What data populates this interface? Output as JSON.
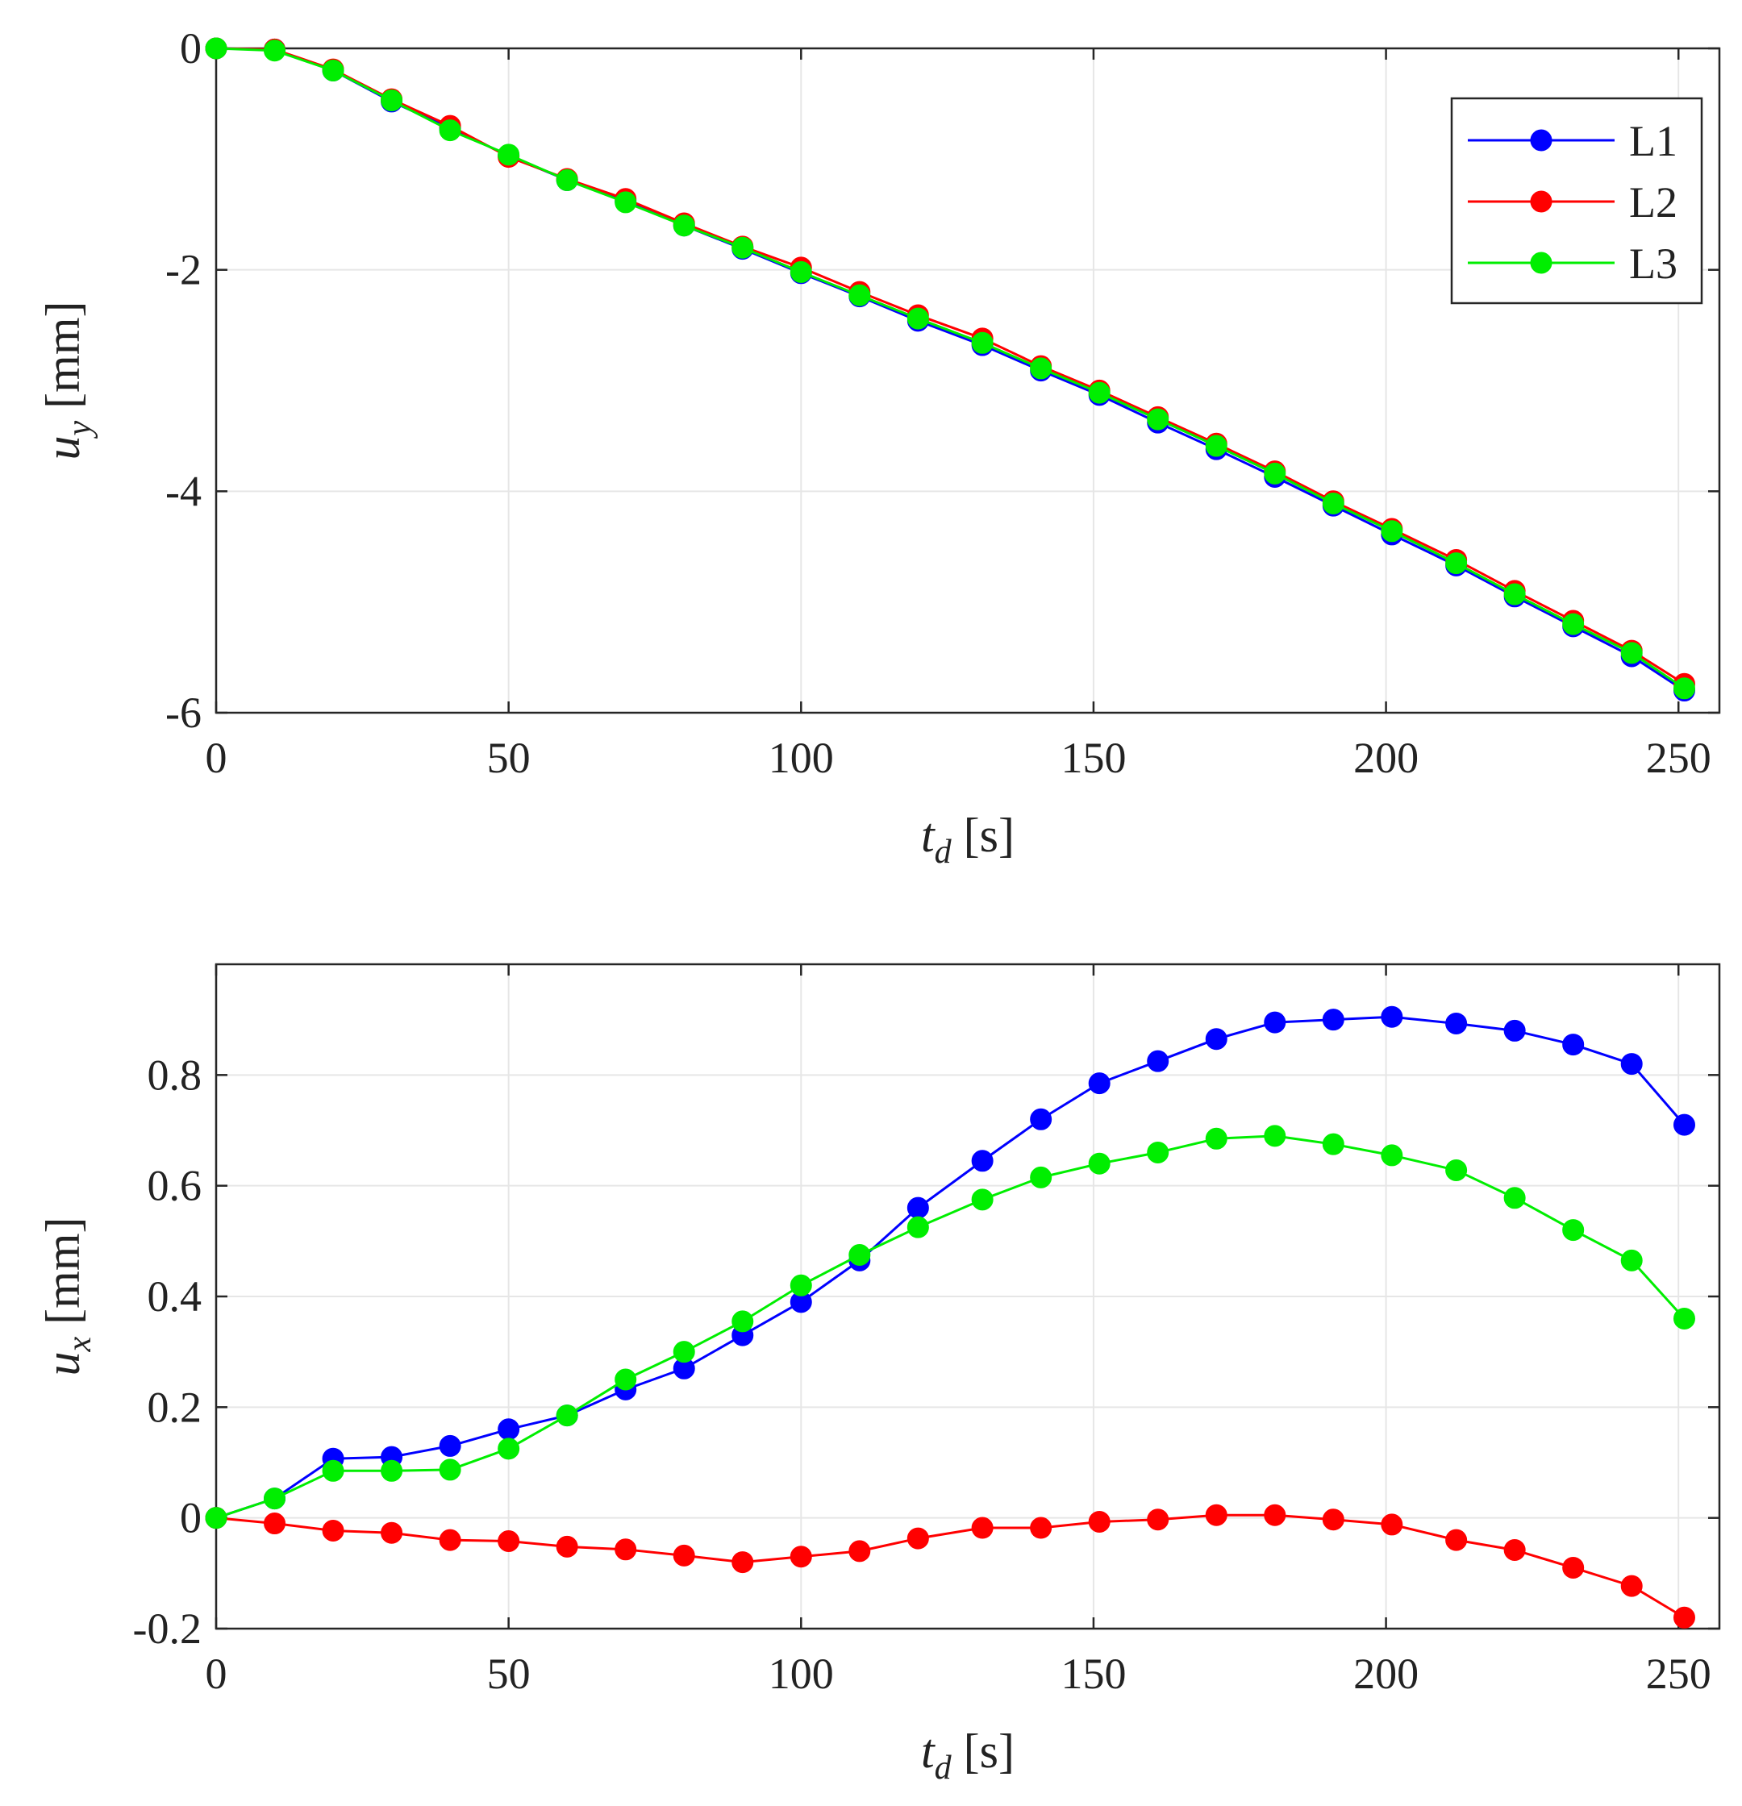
{
  "chart_data": [
    {
      "type": "line",
      "title": "",
      "xlabel": {
        "var": "t",
        "sub": "d",
        "unit": "[s]"
      },
      "ylabel": {
        "var": "u",
        "sub": "y",
        "unit": "[mm]"
      },
      "xlim": [
        0,
        257
      ],
      "ylim": [
        -6,
        0
      ],
      "xticks": [
        0,
        50,
        100,
        150,
        200,
        250
      ],
      "xtick_labels": [
        "0",
        "50",
        "100",
        "150",
        "200",
        "250"
      ],
      "yticks": [
        0,
        -2,
        -4,
        -6
      ],
      "ytick_labels": [
        "0",
        "-2",
        "-4",
        "-6"
      ],
      "grid": true,
      "legend": "top-right",
      "x": [
        0,
        10,
        20,
        30,
        40,
        50,
        60,
        70,
        80,
        90,
        100,
        110,
        120,
        131,
        141,
        151,
        161,
        171,
        181,
        191,
        201,
        212,
        222,
        232,
        242,
        251
      ],
      "series": [
        {
          "name": "L1",
          "color": "#0000ff",
          "values": [
            0,
            -0.01,
            -0.2,
            -0.48,
            -0.72,
            -0.97,
            -1.19,
            -1.38,
            -1.6,
            -1.81,
            -2.03,
            -2.24,
            -2.46,
            -2.68,
            -2.91,
            -3.13,
            -3.38,
            -3.62,
            -3.87,
            -4.13,
            -4.39,
            -4.67,
            -4.95,
            -5.22,
            -5.49,
            -5.8
          ]
        },
        {
          "name": "L2",
          "color": "#ff0000",
          "values": [
            0,
            -0.01,
            -0.19,
            -0.46,
            -0.7,
            -0.98,
            -1.18,
            -1.36,
            -1.58,
            -1.79,
            -1.98,
            -2.2,
            -2.41,
            -2.62,
            -2.87,
            -3.09,
            -3.33,
            -3.57,
            -3.82,
            -4.09,
            -4.34,
            -4.62,
            -4.9,
            -5.17,
            -5.44,
            -5.74
          ]
        },
        {
          "name": "L3",
          "color": "#00ee00",
          "values": [
            0,
            -0.02,
            -0.2,
            -0.47,
            -0.74,
            -0.96,
            -1.19,
            -1.39,
            -1.6,
            -1.8,
            -2.02,
            -2.23,
            -2.44,
            -2.66,
            -2.89,
            -3.11,
            -3.35,
            -3.59,
            -3.84,
            -4.11,
            -4.36,
            -4.65,
            -4.93,
            -5.2,
            -5.46,
            -5.78
          ]
        }
      ]
    },
    {
      "type": "line",
      "title": "",
      "xlabel": {
        "var": "t",
        "sub": "d",
        "unit": "[s]"
      },
      "ylabel": {
        "var": "u",
        "sub": "x",
        "unit": "[mm]"
      },
      "xlim": [
        0,
        257
      ],
      "ylim": [
        -0.2,
        1
      ],
      "xticks": [
        0,
        50,
        100,
        150,
        200,
        250
      ],
      "xtick_labels": [
        "0",
        "50",
        "100",
        "150",
        "200",
        "250"
      ],
      "yticks": [
        -0.2,
        0,
        0.2,
        0.4,
        0.6,
        0.8
      ],
      "ytick_labels": [
        "-0.2",
        "0",
        "0.2",
        "0.4",
        "0.6",
        "0.8"
      ],
      "grid": true,
      "legend": "none",
      "x": [
        0,
        10,
        20,
        30,
        40,
        50,
        60,
        70,
        80,
        90,
        100,
        110,
        120,
        131,
        141,
        151,
        161,
        171,
        181,
        191,
        201,
        212,
        222,
        232,
        242,
        251
      ],
      "series": [
        {
          "name": "L1",
          "color": "#0000ff",
          "values": [
            0,
            0.035,
            0.107,
            0.11,
            0.13,
            0.16,
            0.185,
            0.232,
            0.27,
            0.33,
            0.39,
            0.465,
            0.56,
            0.645,
            0.72,
            0.785,
            0.825,
            0.865,
            0.895,
            0.9,
            0.905,
            0.893,
            0.88,
            0.855,
            0.82,
            0.71
          ]
        },
        {
          "name": "L2",
          "color": "#ff0000",
          "values": [
            0,
            -0.01,
            -0.023,
            -0.027,
            -0.04,
            -0.042,
            -0.052,
            -0.057,
            -0.068,
            -0.08,
            -0.07,
            -0.06,
            -0.037,
            -0.018,
            -0.018,
            -0.007,
            -0.003,
            0.005,
            0.005,
            -0.003,
            -0.012,
            -0.04,
            -0.058,
            -0.09,
            -0.123,
            -0.18
          ]
        },
        {
          "name": "L3",
          "color": "#00ee00",
          "values": [
            0,
            0.035,
            0.085,
            0.085,
            0.087,
            0.125,
            0.185,
            0.25,
            0.3,
            0.355,
            0.42,
            0.475,
            0.525,
            0.575,
            0.615,
            0.64,
            0.66,
            0.685,
            0.69,
            0.675,
            0.655,
            0.628,
            0.578,
            0.52,
            0.465,
            0.36
          ]
        }
      ]
    }
  ]
}
